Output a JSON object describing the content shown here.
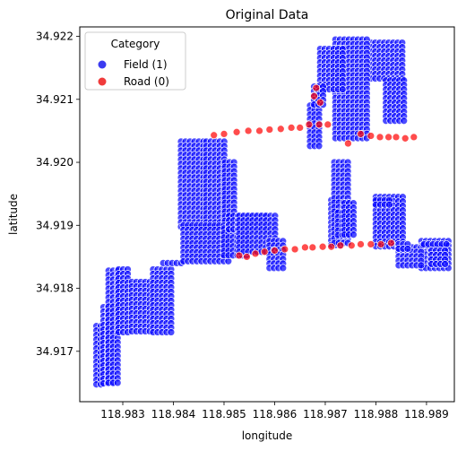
{
  "chart_data": {
    "type": "scatter",
    "title": "Original Data",
    "xlabel": "longitude",
    "ylabel": "latitude",
    "xlim": [
      118.98215,
      118.98955
    ],
    "ylim": [
      34.9162,
      34.92215
    ],
    "x_ticks": [
      118.983,
      118.984,
      118.985,
      118.986,
      118.987,
      118.988,
      118.989
    ],
    "x_tick_labels": [
      "118.983",
      "118.984",
      "118.985",
      "118.986",
      "118.987",
      "118.988",
      "118.989"
    ],
    "y_ticks": [
      34.917,
      34.918,
      34.919,
      34.92,
      34.921,
      34.922
    ],
    "y_tick_labels": [
      "34.917",
      "34.918",
      "34.919",
      "34.920",
      "34.921",
      "34.922"
    ],
    "grid": false,
    "legend": {
      "title": "Category",
      "placement": "top-left",
      "entries": [
        {
          "label": "Field (1)",
          "color": "#3b3bf0"
        },
        {
          "label": "Road (0)",
          "color": "#f03b3b"
        }
      ]
    },
    "series": [
      {
        "name": "Field (1)",
        "color": "#0000ff",
        "regions": [
          {
            "x": [
              118.98248,
              118.98262
            ],
            "y": [
              34.91645,
              34.9174
            ]
          },
          {
            "x": [
              118.98262,
              118.9828
            ],
            "y": [
              34.91645,
              34.9177
            ]
          },
          {
            "x": [
              118.98272,
              118.98292
            ],
            "y": [
              34.91648,
              34.91828
            ]
          },
          {
            "x": [
              118.98292,
              118.98318
            ],
            "y": [
              34.9173,
              34.9183
            ]
          },
          {
            "x": [
              118.98318,
              118.9836
            ],
            "y": [
              34.91728,
              34.9181
            ]
          },
          {
            "x": [
              118.9836,
              118.984
            ],
            "y": [
              34.91728,
              34.9183
            ]
          },
          {
            "x": [
              118.9838,
              118.9842
            ],
            "y": [
              34.9184,
              34.9184
            ]
          },
          {
            "x": [
              118.98415,
              118.98465
            ],
            "y": [
              34.91895,
              34.92033
            ]
          },
          {
            "x": [
              118.98465,
              118.98502
            ],
            "y": [
              34.91895,
              34.92033
            ]
          },
          {
            "x": [
              118.98502,
              118.98525
            ],
            "y": [
              34.91905,
              34.92
            ]
          },
          {
            "x": [
              118.9842,
              118.98515
            ],
            "y": [
              34.9184,
              34.919
            ]
          },
          {
            "x": [
              118.985,
              118.9855
            ],
            "y": [
              34.9185,
              34.91895
            ]
          },
          {
            "x": [
              118.9851,
              118.98585
            ],
            "y": [
              34.9189,
              34.91915
            ]
          },
          {
            "x": [
              118.9853,
              118.98605
            ],
            "y": [
              34.91855,
              34.91915
            ]
          },
          {
            "x": [
              118.9859,
              118.9862
            ],
            "y": [
              34.9183,
              34.91875
            ]
          },
          {
            "x": [
              118.988,
              118.98855
            ],
            "y": [
              34.91865,
              34.91945
            ]
          },
          {
            "x": [
              118.9889,
              118.98945
            ],
            "y": [
              34.9183,
              34.91875
            ]
          },
          {
            "x": [
              118.98845,
              118.9889
            ],
            "y": [
              34.91835,
              34.91865
            ]
          },
          {
            "x": [
              118.98893,
              118.98935
            ],
            "y": [
              34.91863,
              34.91868
            ]
          },
          {
            "x": [
              118.9879,
              118.9886
            ],
            "y": [
              34.9213,
              34.9219
            ]
          },
          {
            "x": [
              118.9882,
              118.9886
            ],
            "y": [
              34.92065,
              34.9213
            ]
          },
          {
            "x": [
              118.9872,
              118.9879
            ],
            "y": [
              34.92035,
              34.92195
            ]
          },
          {
            "x": [
              118.9869,
              118.98735
            ],
            "y": [
              34.9211,
              34.9218
            ]
          },
          {
            "x": [
              118.9867,
              118.9869
            ],
            "y": [
              34.92025,
              34.9209
            ]
          },
          {
            "x": [
              118.98678,
              118.98698
            ],
            "y": [
              34.9209,
              34.9212
            ]
          },
          {
            "x": [
              118.98712,
              118.98735
            ],
            "y": [
              34.91865,
              34.9194
            ]
          },
          {
            "x": [
              118.98718,
              118.98745
            ],
            "y": [
              34.91872,
              34.92
            ]
          },
          {
            "x": [
              118.98725,
              118.98745
            ],
            "y": [
              34.91878,
              34.9192
            ]
          },
          {
            "x": [
              118.98738,
              118.9876
            ],
            "y": [
              34.9188,
              34.91935
            ]
          },
          {
            "x": [
              118.988,
              118.98835
            ],
            "y": [
              34.9193,
              34.9194
            ]
          },
          {
            "x": [
              118.98845,
              118.98865
            ],
            "y": [
              34.9186,
              34.9187
            ]
          },
          {
            "x": [
              118.98895,
              118.9894
            ],
            "y": [
              34.9187,
              34.9187
            ]
          },
          {
            "x": [
              118.9891,
              118.9894
            ],
            "y": [
              34.91835,
              34.9186
            ]
          }
        ]
      },
      {
        "name": "Road (0)",
        "color": "#ff0000",
        "points": [
          [
            118.9848,
            34.92043
          ],
          [
            118.985,
            34.92045
          ],
          [
            118.98525,
            34.92048
          ],
          [
            118.98548,
            34.9205
          ],
          [
            118.9857,
            34.9205
          ],
          [
            118.9859,
            34.92052
          ],
          [
            118.98612,
            34.92053
          ],
          [
            118.98633,
            34.92055
          ],
          [
            118.9865,
            34.92055
          ],
          [
            118.98668,
            34.9206
          ],
          [
            118.98678,
            34.92105
          ],
          [
            118.98682,
            34.92118
          ],
          [
            118.9869,
            34.92095
          ],
          [
            118.98688,
            34.9206
          ],
          [
            118.98705,
            34.9206
          ],
          [
            118.9853,
            34.91852
          ],
          [
            118.98545,
            34.9185
          ],
          [
            118.98562,
            34.91855
          ],
          [
            118.9858,
            34.91858
          ],
          [
            118.986,
            34.9186
          ],
          [
            118.9862,
            34.91862
          ],
          [
            118.9864,
            34.91862
          ],
          [
            118.9866,
            34.91865
          ],
          [
            118.98675,
            34.91865
          ],
          [
            118.98695,
            34.91866
          ],
          [
            118.98712,
            34.91866
          ],
          [
            118.9873,
            34.91868
          ],
          [
            118.98752,
            34.91868
          ],
          [
            118.9877,
            34.9187
          ],
          [
            118.9879,
            34.9187
          ],
          [
            118.9881,
            34.9187
          ],
          [
            118.9883,
            34.91872
          ],
          [
            118.9877,
            34.92045
          ],
          [
            118.9879,
            34.92042
          ],
          [
            118.98808,
            34.9204
          ],
          [
            118.98825,
            34.9204
          ],
          [
            118.9884,
            34.9204
          ],
          [
            118.98858,
            34.92038
          ],
          [
            118.98875,
            34.9204
          ],
          [
            118.98745,
            34.9203
          ]
        ]
      }
    ]
  }
}
